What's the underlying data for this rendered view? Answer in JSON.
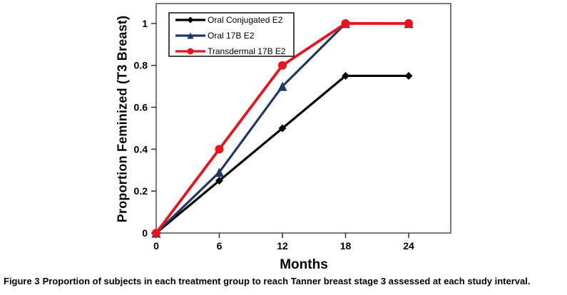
{
  "caption": {
    "label": "Figure 3",
    "text": "Proportion of subjects in each treatment group to reach Tanner breast stage 3 assessed at each study interval."
  },
  "chart_data": {
    "type": "line",
    "title": "",
    "xlabel": "Months",
    "ylabel": "Proportion Feminized (T3 Breast)",
    "x": [
      0,
      6,
      12,
      18,
      24
    ],
    "xtick_labels": [
      "0",
      "6",
      "12",
      "18",
      "24"
    ],
    "ytick_values": [
      0,
      0.2,
      0.4,
      0.6,
      0.8,
      1
    ],
    "ytick_labels": [
      "0",
      "0.2",
      "0.4",
      "0.6",
      "0.8",
      "1"
    ],
    "xlim": [
      0,
      28
    ],
    "ylim": [
      0,
      1.095
    ],
    "grid": false,
    "legend_position": "top-left-inside",
    "series": [
      {
        "name": "Oral Conjugated E2",
        "marker": "diamond",
        "color": "#000000",
        "values": [
          0,
          0.25,
          0.5,
          0.75,
          0.75
        ]
      },
      {
        "name": "Oral 17B E2",
        "marker": "triangle",
        "color": "#1f3864",
        "values": [
          0,
          0.29,
          0.7,
          1,
          1
        ]
      },
      {
        "name": "Transdermal 17B E2",
        "marker": "circle",
        "color": "#e8131d",
        "values": [
          0,
          0.4,
          0.8,
          1,
          1
        ]
      }
    ],
    "plot_border_color": "#7a7a7a",
    "axis_tick_color": "#3a3a3a",
    "legend_border_color": "#1a1a1a"
  }
}
